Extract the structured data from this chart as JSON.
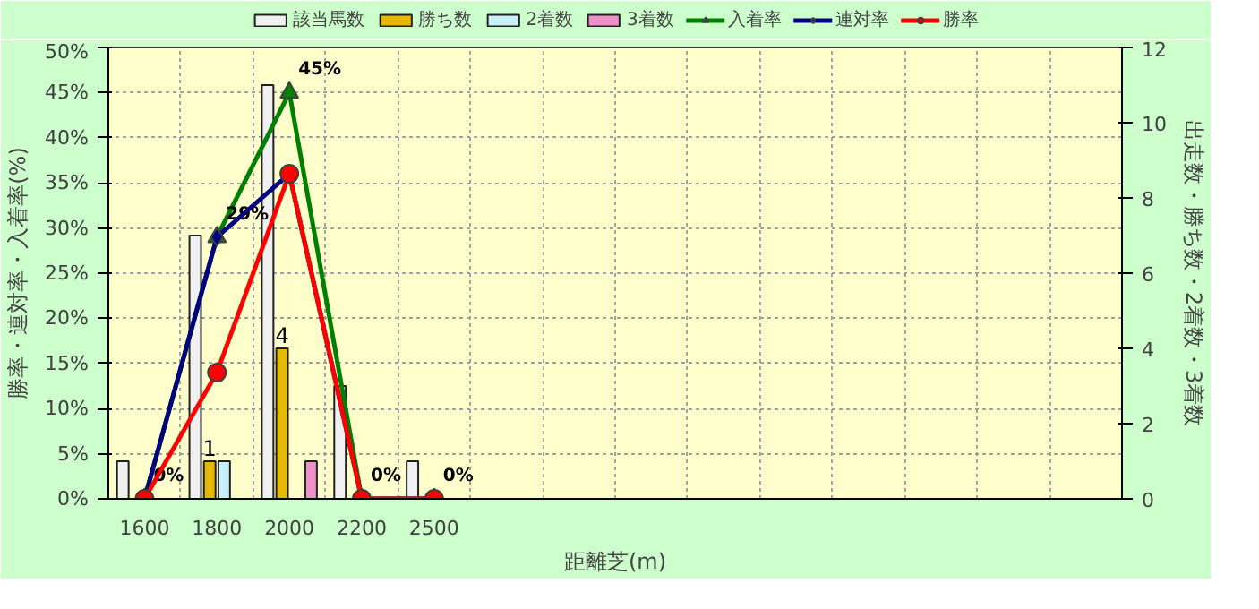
{
  "chart_data": {
    "type": "bar",
    "xlabel": "距離芝(m)",
    "ylabel": "勝率・連対率・入着率(%)",
    "y2label": "出走数・勝ち数・2着数・3着数",
    "categories": [
      "1600",
      "1800",
      "2000",
      "2200",
      "2500",
      null,
      null,
      null,
      null,
      null,
      null,
      null,
      null,
      null
    ],
    "series": [
      {
        "name": "該当馬数",
        "axis": "y2",
        "color": "#f0f0f0",
        "values": [
          1,
          7,
          11,
          3,
          1,
          null,
          null,
          null,
          null,
          null,
          null,
          null,
          null,
          null
        ]
      },
      {
        "name": "勝ち数",
        "axis": "y2",
        "color": "#e6b800",
        "values": [
          0,
          1,
          4,
          0,
          0,
          null,
          null,
          null,
          null,
          null,
          null,
          null,
          null,
          null
        ],
        "value_labels": [
          null,
          "1",
          "4",
          null,
          null,
          null,
          null,
          null,
          null,
          null,
          null,
          null,
          null,
          null
        ]
      },
      {
        "name": "2着数",
        "axis": "y2",
        "color": "#c8f0f8",
        "values": [
          0,
          1,
          0,
          0,
          0,
          null,
          null,
          null,
          null,
          null,
          null,
          null,
          null,
          null
        ]
      },
      {
        "name": "3着数",
        "axis": "y2",
        "color": "#f090c8",
        "values": [
          0,
          0,
          1,
          0,
          0,
          null,
          null,
          null,
          null,
          null,
          null,
          null,
          null,
          null
        ]
      },
      {
        "name": "入着率",
        "type": "line",
        "color": "#008000",
        "marker": "triangle",
        "values": [
          0,
          29,
          45,
          0,
          0,
          null,
          null,
          null,
          null,
          null,
          null,
          null,
          null,
          null
        ],
        "value_labels": [
          "0%",
          "29%",
          "45%",
          "0%",
          "0%",
          null,
          null,
          null,
          null,
          null,
          null,
          null,
          null,
          null
        ]
      },
      {
        "name": "連対率",
        "type": "line",
        "color": "#000080",
        "marker": "diamond",
        "values": [
          0,
          29,
          36,
          0,
          0,
          null,
          null,
          null,
          null,
          null,
          null,
          null,
          null,
          null
        ]
      },
      {
        "name": "勝率",
        "type": "line",
        "color": "#ff0000",
        "marker": "circle",
        "values": [
          0,
          14,
          36,
          0,
          0,
          null,
          null,
          null,
          null,
          null,
          null,
          null,
          null,
          null
        ]
      }
    ],
    "ylim": [
      0,
      50
    ],
    "yticks": [
      {
        "value": 0,
        "label": "0%"
      },
      {
        "value": 5,
        "label": "5%"
      },
      {
        "value": 10,
        "label": "10%"
      },
      {
        "value": 15,
        "label": "15%"
      },
      {
        "value": 20,
        "label": "20%"
      },
      {
        "value": 25,
        "label": "25%"
      },
      {
        "value": 30,
        "label": "30%"
      },
      {
        "value": 35,
        "label": "35%"
      },
      {
        "value": 40,
        "label": "40%"
      },
      {
        "value": 45,
        "label": "45%"
      },
      {
        "value": 50,
        "label": "50%"
      }
    ],
    "y2lim": [
      0,
      12
    ],
    "y2ticks": [
      0,
      2,
      4,
      6,
      8,
      10,
      12
    ],
    "grid": true,
    "legend": "top"
  }
}
